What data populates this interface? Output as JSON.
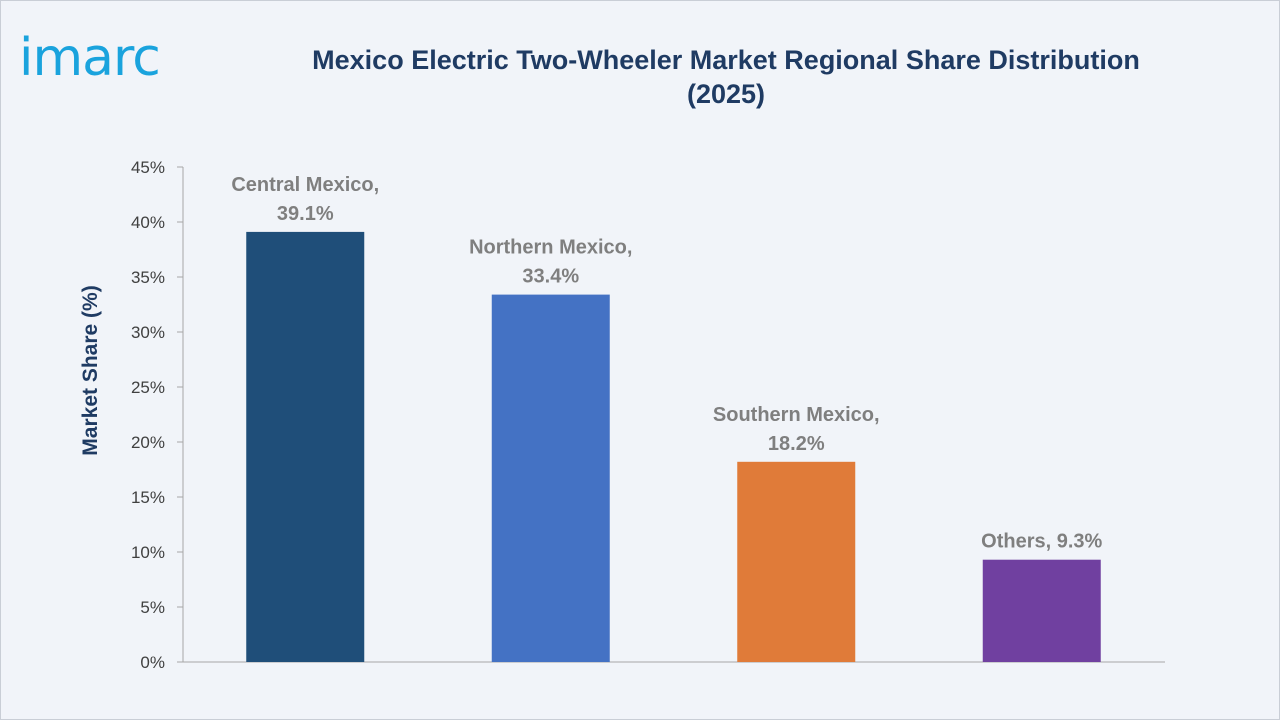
{
  "brand": {
    "logo_text": "imarc",
    "logo_color": "#1aa3dd"
  },
  "title": {
    "line1": "Mexico Electric Two-Wheeler Market Regional Share Distribution",
    "line2": "(2025)"
  },
  "chart_data": {
    "type": "bar",
    "categories": [
      "Central Mexico",
      "Northern Mexico",
      "Southern Mexico",
      "Others"
    ],
    "values": [
      39.1,
      33.4,
      18.2,
      9.3
    ],
    "data_labels": [
      [
        "Central Mexico,",
        "39.1%"
      ],
      [
        "Northern Mexico,",
        "33.4%"
      ],
      [
        "Southern Mexico,",
        "18.2%"
      ],
      [
        "Others, 9.3%"
      ]
    ],
    "colors": [
      "#1f4e79",
      "#4472c4",
      "#e07b39",
      "#7040a0"
    ],
    "ylabel": "Market Share (%)",
    "ylim": [
      0,
      45
    ],
    "yticks": [
      0,
      5,
      10,
      15,
      20,
      25,
      30,
      35,
      40,
      45
    ],
    "ytick_labels": [
      "0%",
      "5%",
      "10%",
      "15%",
      "20%",
      "25%",
      "30%",
      "35%",
      "40%",
      "45%"
    ],
    "grid": false,
    "legend": "none",
    "text_color": "#1f3b63",
    "label_color": "#7f7f7f",
    "axis_color": "#a6a6a6"
  }
}
